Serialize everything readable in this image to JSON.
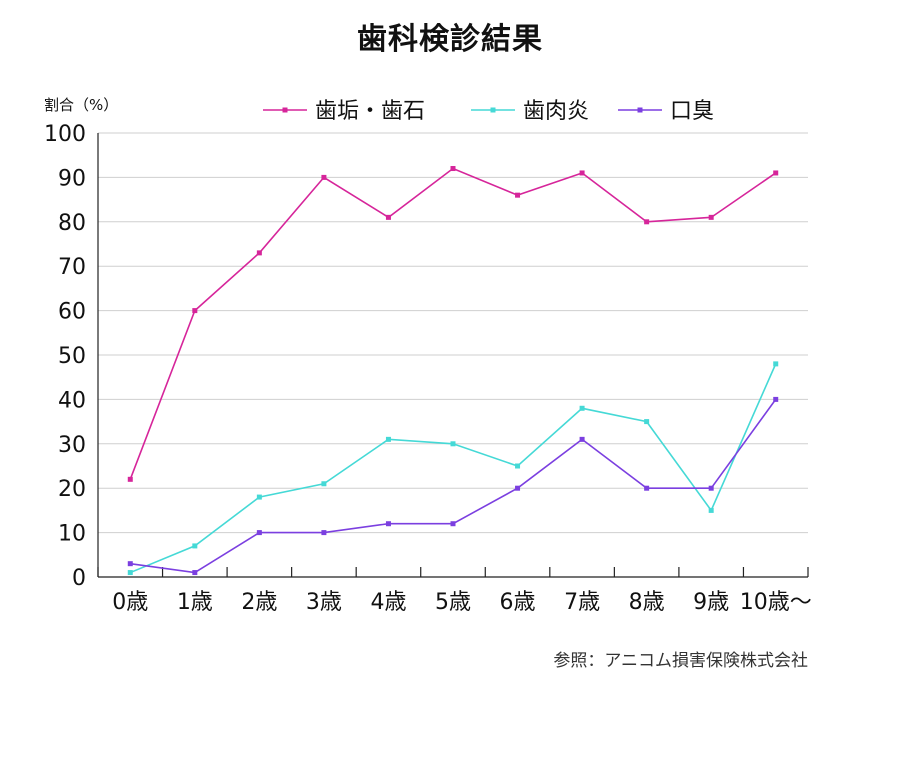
{
  "chart_data": {
    "type": "line",
    "title": "歯科検診結果",
    "ylabel": "割合（%）",
    "xlabel": "",
    "categories": [
      "0歳",
      "1歳",
      "2歳",
      "3歳",
      "4歳",
      "5歳",
      "6歳",
      "7歳",
      "8歳",
      "9歳",
      "10歳〜"
    ],
    "ylim": [
      0,
      100
    ],
    "yticks": [
      0,
      10,
      20,
      30,
      40,
      50,
      60,
      70,
      80,
      90,
      100
    ],
    "grid": true,
    "legend_position": "top",
    "series": [
      {
        "name": "歯垢・歯石",
        "color": "#d6259a",
        "values": [
          22,
          60,
          73,
          90,
          81,
          92,
          86,
          91,
          80,
          81,
          91
        ]
      },
      {
        "name": "歯肉炎",
        "color": "#45d9d6",
        "values": [
          1,
          7,
          18,
          21,
          31,
          30,
          25,
          38,
          35,
          15,
          48
        ]
      },
      {
        "name": "口臭",
        "color": "#7b3fe0",
        "values": [
          3,
          1,
          10,
          10,
          12,
          12,
          20,
          31,
          20,
          20,
          40
        ]
      }
    ]
  },
  "source_note": "参照：アニコム損害保険株式会社"
}
